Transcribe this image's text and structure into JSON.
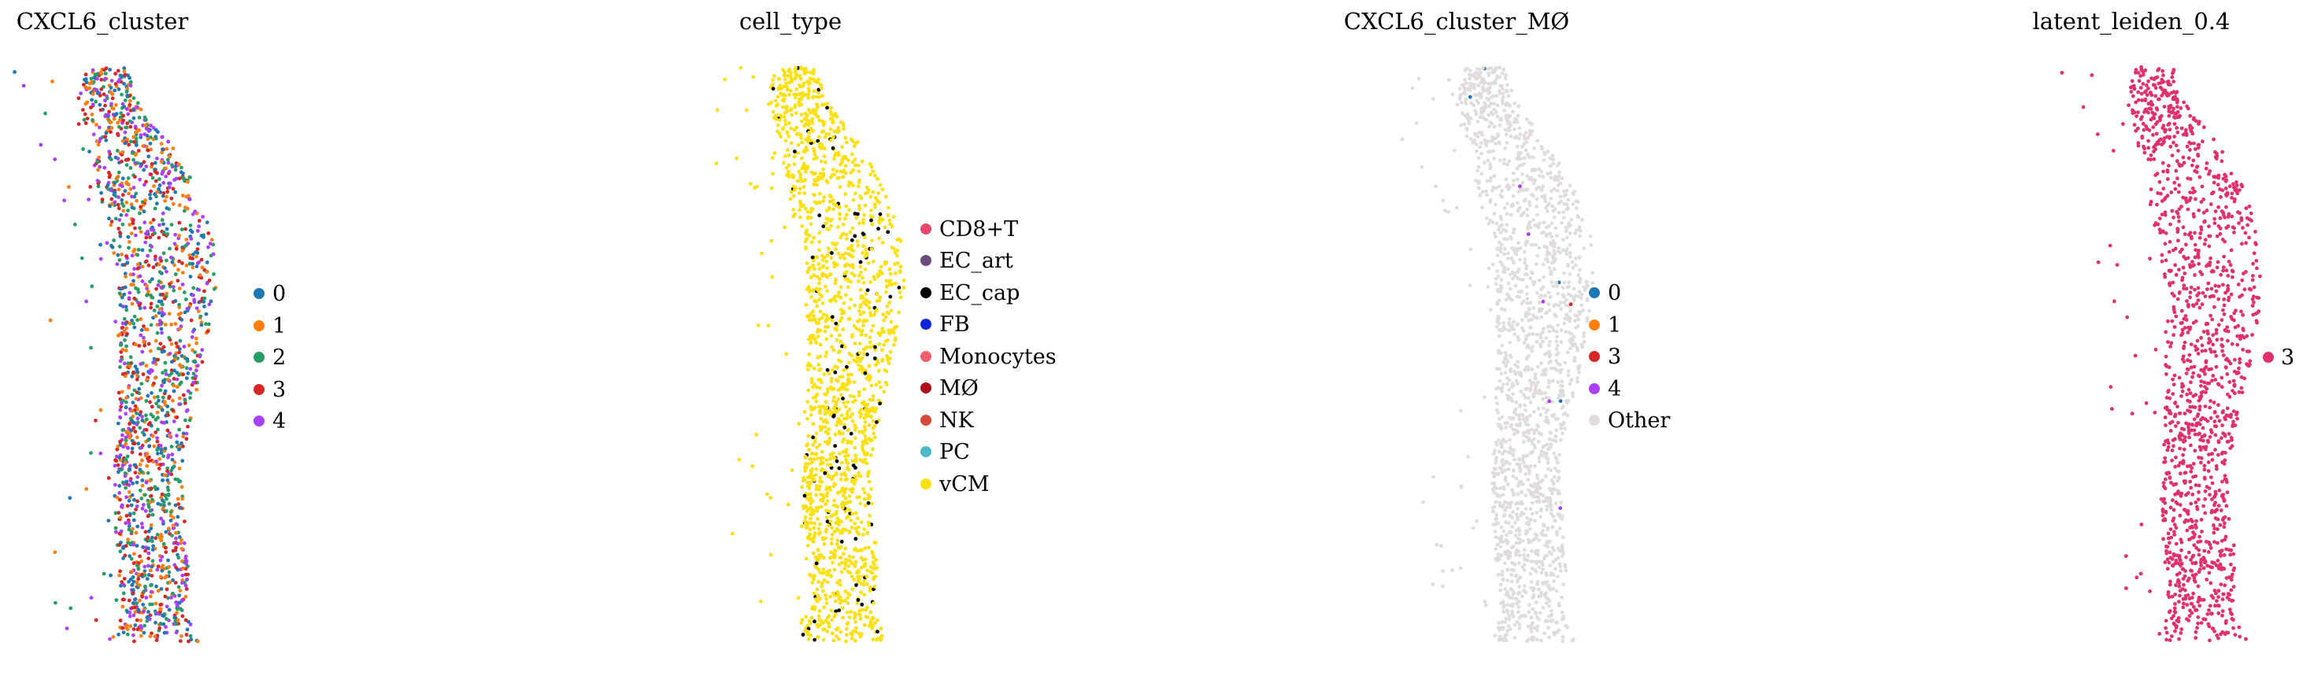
{
  "chart_data": [
    {
      "type": "scatter",
      "title": "CXCL6_cluster",
      "xlabel": "",
      "ylabel": "",
      "grid": false,
      "legend_position": "right",
      "categories": [
        "0",
        "1",
        "2",
        "3",
        "4"
      ],
      "colors": [
        "#1f77b4",
        "#ff7f0e",
        "#279e68",
        "#d62728",
        "#aa40fc"
      ],
      "shape": "dense vertical band of spatial spots, mixed colors throughout"
    },
    {
      "type": "scatter",
      "title": "cell_type",
      "xlabel": "",
      "ylabel": "",
      "grid": false,
      "legend_position": "right",
      "categories": [
        "CD8+T",
        "EC_art",
        "EC_cap",
        "FB",
        "Monocytes",
        "MØ",
        "NK",
        "PC",
        "vCM"
      ],
      "colors": [
        "#e8456b",
        "#6b4c7a",
        "#000000",
        "#0a24d8",
        "#f0606a",
        "#b0101e",
        "#d94a3c",
        "#4cb8c8",
        "#fde012"
      ],
      "dominant_category": "vCM",
      "minor_category": "EC_cap"
    },
    {
      "type": "scatter",
      "title": "CXCL6_cluster_MØ",
      "xlabel": "",
      "ylabel": "",
      "grid": false,
      "legend_position": "right",
      "categories": [
        "0",
        "1",
        "3",
        "4",
        "Other"
      ],
      "colors": [
        "#1f77b4",
        "#ff7f0e",
        "#d62728",
        "#aa40fc",
        "#e0dcdc"
      ],
      "dominant_category": "Other"
    },
    {
      "type": "scatter",
      "title": "latent_leiden_0.4",
      "xlabel": "",
      "ylabel": "",
      "grid": false,
      "legend_position": "right",
      "categories": [
        "3"
      ],
      "colors": [
        "#e0326a"
      ],
      "dominant_category": "3"
    }
  ]
}
